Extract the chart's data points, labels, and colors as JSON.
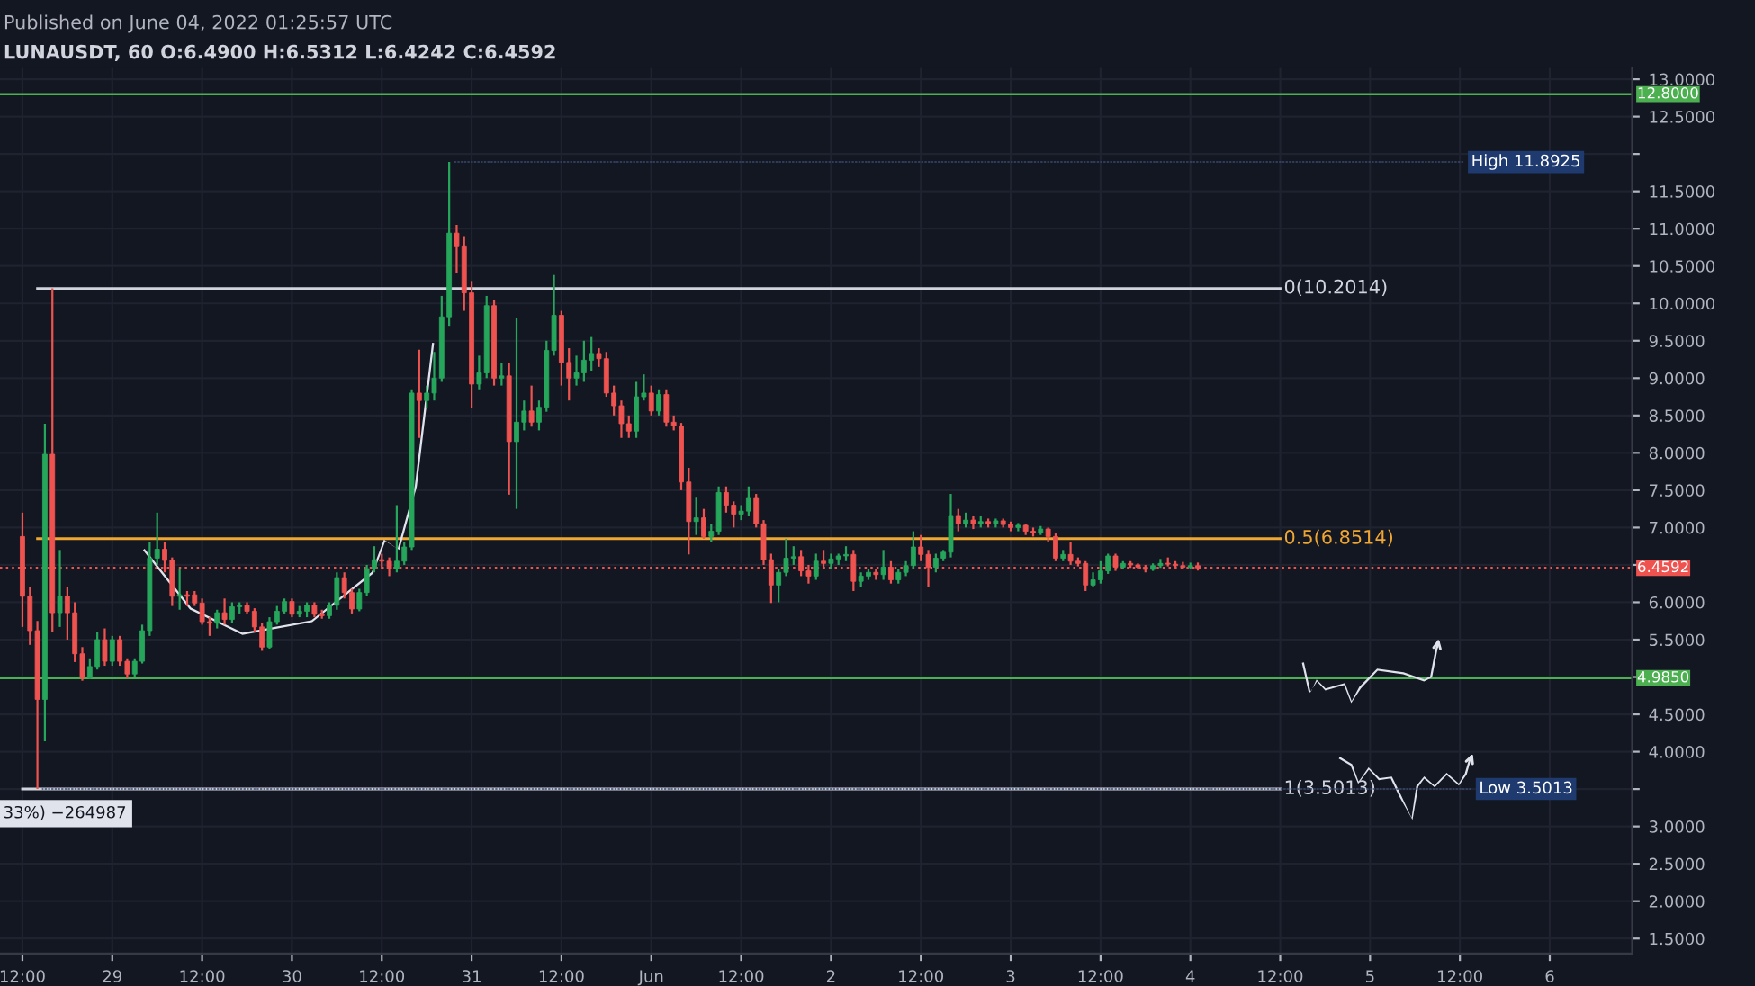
{
  "chart_data": {
    "type": "candlestick",
    "title": "Published on June 04, 2022 01:25:57 UTC",
    "subtitle": "LUNAUSDT, 60 O:6.4900 H:6.5312 L:6.4242 C:6.4592",
    "x": [
      "2022-05-28T12:00",
      "2022-05-28T13:00",
      "2022-05-28T14:00",
      "2022-05-28T15:00",
      "2022-05-28T16:00",
      "2022-05-28T17:00",
      "2022-05-28T18:00",
      "2022-05-28T19:00",
      "2022-05-28T20:00",
      "2022-05-28T21:00",
      "2022-05-28T22:00",
      "2022-05-28T23:00",
      "2022-05-29T00:00",
      "2022-05-29T01:00",
      "2022-05-29T02:00",
      "2022-05-29T03:00",
      "2022-05-29T04:00",
      "2022-05-29T05:00",
      "2022-05-29T06:00",
      "2022-05-29T07:00",
      "2022-05-29T08:00",
      "2022-05-29T09:00",
      "2022-05-29T10:00",
      "2022-05-29T11:00",
      "2022-05-29T12:00",
      "2022-05-29T13:00",
      "2022-05-29T14:00",
      "2022-05-29T15:00",
      "2022-05-29T16:00",
      "2022-05-29T17:00",
      "2022-05-29T18:00",
      "2022-05-29T19:00",
      "2022-05-29T20:00",
      "2022-05-29T21:00",
      "2022-05-29T22:00",
      "2022-05-29T23:00",
      "2022-05-30T00:00",
      "2022-05-30T01:00",
      "2022-05-30T02:00",
      "2022-05-30T03:00",
      "2022-05-30T04:00",
      "2022-05-30T05:00",
      "2022-05-30T06:00",
      "2022-05-30T07:00",
      "2022-05-30T08:00",
      "2022-05-30T09:00",
      "2022-05-30T10:00",
      "2022-05-30T11:00",
      "2022-05-30T12:00",
      "2022-05-30T13:00",
      "2022-05-30T14:00",
      "2022-05-30T15:00",
      "2022-05-30T16:00",
      "2022-05-30T17:00",
      "2022-05-30T18:00",
      "2022-05-30T19:00",
      "2022-05-30T20:00",
      "2022-05-30T21:00",
      "2022-05-30T22:00",
      "2022-05-30T23:00",
      "2022-05-31T00:00",
      "2022-05-31T01:00",
      "2022-05-31T02:00",
      "2022-05-31T03:00",
      "2022-05-31T04:00",
      "2022-05-31T05:00",
      "2022-05-31T06:00",
      "2022-05-31T07:00",
      "2022-05-31T08:00",
      "2022-05-31T09:00",
      "2022-05-31T10:00",
      "2022-05-31T11:00",
      "2022-05-31T12:00",
      "2022-05-31T13:00",
      "2022-05-31T14:00",
      "2022-05-31T15:00",
      "2022-05-31T16:00",
      "2022-05-31T17:00",
      "2022-05-31T18:00",
      "2022-05-31T19:00",
      "2022-05-31T20:00",
      "2022-05-31T21:00",
      "2022-05-31T22:00",
      "2022-05-31T23:00",
      "2022-06-01T00:00",
      "2022-06-01T01:00",
      "2022-06-01T02:00",
      "2022-06-01T03:00",
      "2022-06-01T04:00",
      "2022-06-01T05:00",
      "2022-06-01T06:00",
      "2022-06-01T07:00",
      "2022-06-01T08:00",
      "2022-06-01T09:00",
      "2022-06-01T10:00",
      "2022-06-01T11:00",
      "2022-06-01T12:00",
      "2022-06-01T13:00",
      "2022-06-01T14:00",
      "2022-06-01T15:00",
      "2022-06-01T16:00",
      "2022-06-01T17:00",
      "2022-06-01T18:00",
      "2022-06-01T19:00",
      "2022-06-01T20:00",
      "2022-06-01T21:00",
      "2022-06-01T22:00",
      "2022-06-01T23:00",
      "2022-06-02T00:00",
      "2022-06-02T01:00",
      "2022-06-02T02:00",
      "2022-06-02T03:00",
      "2022-06-02T04:00",
      "2022-06-02T05:00",
      "2022-06-02T06:00",
      "2022-06-02T07:00",
      "2022-06-02T08:00",
      "2022-06-02T09:00",
      "2022-06-02T10:00",
      "2022-06-02T11:00",
      "2022-06-02T12:00",
      "2022-06-02T13:00",
      "2022-06-02T14:00",
      "2022-06-02T15:00",
      "2022-06-02T16:00",
      "2022-06-02T17:00",
      "2022-06-02T18:00",
      "2022-06-02T19:00",
      "2022-06-02T20:00",
      "2022-06-02T21:00",
      "2022-06-02T22:00",
      "2022-06-02T23:00",
      "2022-06-03T00:00",
      "2022-06-03T01:00",
      "2022-06-03T02:00",
      "2022-06-03T03:00",
      "2022-06-03T04:00",
      "2022-06-03T05:00",
      "2022-06-03T06:00",
      "2022-06-03T07:00",
      "2022-06-03T08:00",
      "2022-06-03T09:00",
      "2022-06-03T10:00",
      "2022-06-03T11:00",
      "2022-06-03T12:00",
      "2022-06-03T13:00",
      "2022-06-03T14:00",
      "2022-06-03T15:00",
      "2022-06-03T16:00",
      "2022-06-03T17:00",
      "2022-06-03T18:00",
      "2022-06-03T19:00",
      "2022-06-03T20:00",
      "2022-06-03T21:00",
      "2022-06-03T22:00",
      "2022-06-03T23:00",
      "2022-06-04T00:00",
      "2022-06-04T01:00"
    ],
    "ohlc": [
      [
        6.88,
        7.2,
        5.67,
        6.08
      ],
      [
        6.08,
        6.2,
        5.43,
        5.62
      ],
      [
        5.62,
        5.75,
        3.5013,
        4.7
      ],
      [
        4.7,
        8.39,
        4.14,
        7.98
      ],
      [
        7.98,
        10.2014,
        5.6,
        5.86
      ],
      [
        5.86,
        6.7,
        5.67,
        6.08
      ],
      [
        6.08,
        6.2,
        5.5,
        5.86
      ],
      [
        5.86,
        6.0,
        5.2,
        5.31
      ],
      [
        5.31,
        5.4,
        4.95,
        4.99
      ],
      [
        4.99,
        5.25,
        4.97,
        5.14
      ],
      [
        5.14,
        5.6,
        5.1,
        5.5
      ],
      [
        5.5,
        5.65,
        5.15,
        5.21
      ],
      [
        5.21,
        5.55,
        5.15,
        5.5
      ],
      [
        5.5,
        5.55,
        5.15,
        5.21
      ],
      [
        5.21,
        5.25,
        4.98,
        5.04
      ],
      [
        5.04,
        5.25,
        5.0,
        5.21
      ],
      [
        5.21,
        5.7,
        5.18,
        5.62
      ],
      [
        5.62,
        6.8,
        5.55,
        6.59
      ],
      [
        6.59,
        7.2,
        6.5,
        6.71
      ],
      [
        6.71,
        6.8,
        6.4,
        6.56
      ],
      [
        6.56,
        6.6,
        5.95,
        6.08
      ],
      [
        6.08,
        6.45,
        5.9,
        6.1
      ],
      [
        6.1,
        6.15,
        5.95,
        6.08
      ],
      [
        6.1,
        6.15,
        5.95,
        5.99
      ],
      [
        5.99,
        6.05,
        5.7,
        5.74
      ],
      [
        5.74,
        5.8,
        5.55,
        5.72
      ],
      [
        5.72,
        5.9,
        5.65,
        5.86
      ],
      [
        5.86,
        6.05,
        5.7,
        5.77
      ],
      [
        5.77,
        6.0,
        5.72,
        5.94
      ],
      [
        5.94,
        6.0,
        5.85,
        5.96
      ],
      [
        5.96,
        6.0,
        5.85,
        5.88
      ],
      [
        5.88,
        5.92,
        5.6,
        5.67
      ],
      [
        5.67,
        5.72,
        5.35,
        5.4
      ],
      [
        5.4,
        5.8,
        5.38,
        5.74
      ],
      [
        5.74,
        5.95,
        5.7,
        5.88
      ],
      [
        5.88,
        6.05,
        5.85,
        6.01
      ],
      [
        6.01,
        6.05,
        5.8,
        5.84
      ],
      [
        5.84,
        5.95,
        5.8,
        5.88
      ],
      [
        5.88,
        6.0,
        5.8,
        5.96
      ],
      [
        5.96,
        6.0,
        5.8,
        5.84
      ],
      [
        5.84,
        5.9,
        5.78,
        5.82
      ],
      [
        5.82,
        6.0,
        5.78,
        5.96
      ],
      [
        5.96,
        6.4,
        5.9,
        6.33
      ],
      [
        6.33,
        6.4,
        6.05,
        6.13
      ],
      [
        6.13,
        6.18,
        5.85,
        5.91
      ],
      [
        5.91,
        6.18,
        5.88,
        6.13
      ],
      [
        6.13,
        6.5,
        6.08,
        6.45
      ],
      [
        6.45,
        6.75,
        6.4,
        6.57
      ],
      [
        6.57,
        6.65,
        6.45,
        6.55
      ],
      [
        6.55,
        6.6,
        6.35,
        6.45
      ],
      [
        6.45,
        7.3,
        6.4,
        6.55
      ],
      [
        6.55,
        6.8,
        6.5,
        6.74
      ],
      [
        6.74,
        8.85,
        6.7,
        8.8
      ],
      [
        8.8,
        9.38,
        8.2,
        8.7
      ],
      [
        8.7,
        8.9,
        8.6,
        8.8
      ],
      [
        8.8,
        9.35,
        8.7,
        9.0
      ],
      [
        9.0,
        10.1,
        8.95,
        9.82
      ],
      [
        9.82,
        11.8925,
        9.7,
        10.94
      ],
      [
        10.94,
        11.05,
        10.4,
        10.77
      ],
      [
        10.77,
        10.9,
        9.9,
        10.14
      ],
      [
        10.14,
        10.3,
        8.6,
        8.92
      ],
      [
        8.92,
        9.3,
        8.85,
        9.07
      ],
      [
        9.07,
        10.1,
        9.0,
        9.97
      ],
      [
        9.97,
        10.05,
        8.9,
        9.0
      ],
      [
        9.0,
        9.2,
        8.9,
        9.03
      ],
      [
        9.03,
        9.2,
        7.44,
        8.15
      ],
      [
        8.15,
        9.8,
        7.25,
        8.41
      ],
      [
        8.41,
        8.7,
        8.3,
        8.56
      ],
      [
        8.56,
        8.9,
        8.35,
        8.41
      ],
      [
        8.41,
        8.7,
        8.3,
        8.61
      ],
      [
        8.61,
        9.5,
        8.55,
        9.37
      ],
      [
        9.37,
        10.38,
        9.3,
        9.84
      ],
      [
        9.84,
        9.9,
        8.9,
        9.21
      ],
      [
        9.21,
        9.4,
        8.7,
        9.0
      ],
      [
        9.0,
        9.3,
        8.9,
        9.07
      ],
      [
        9.07,
        9.5,
        8.95,
        9.24
      ],
      [
        9.24,
        9.55,
        9.1,
        9.33
      ],
      [
        9.33,
        9.4,
        9.15,
        9.26
      ],
      [
        9.26,
        9.35,
        8.75,
        8.8
      ],
      [
        8.8,
        8.9,
        8.5,
        8.63
      ],
      [
        8.63,
        8.7,
        8.2,
        8.39
      ],
      [
        8.39,
        8.5,
        8.2,
        8.29
      ],
      [
        8.29,
        8.95,
        8.2,
        8.75
      ],
      [
        8.75,
        9.05,
        8.7,
        8.8
      ],
      [
        8.8,
        8.9,
        8.5,
        8.56
      ],
      [
        8.56,
        8.85,
        8.5,
        8.78
      ],
      [
        8.78,
        8.85,
        8.35,
        8.41
      ],
      [
        8.41,
        8.5,
        8.3,
        8.36
      ],
      [
        8.36,
        8.4,
        7.5,
        7.61
      ],
      [
        7.61,
        7.8,
        6.64,
        7.08
      ],
      [
        7.08,
        7.4,
        6.9,
        7.13
      ],
      [
        7.13,
        7.25,
        6.85,
        6.88
      ],
      [
        6.88,
        7.05,
        6.8,
        6.95
      ],
      [
        6.95,
        7.55,
        6.9,
        7.47
      ],
      [
        7.47,
        7.55,
        7.2,
        7.3
      ],
      [
        7.3,
        7.35,
        7.0,
        7.18
      ],
      [
        7.18,
        7.3,
        7.1,
        7.22
      ],
      [
        7.22,
        7.55,
        7.15,
        7.39
      ],
      [
        7.39,
        7.45,
        7.0,
        7.05
      ],
      [
        7.05,
        7.1,
        6.5,
        6.57
      ],
      [
        6.57,
        6.65,
        5.99,
        6.23
      ],
      [
        6.23,
        6.45,
        6.0,
        6.4
      ],
      [
        6.4,
        6.85,
        6.35,
        6.59
      ],
      [
        6.59,
        6.75,
        6.5,
        6.61
      ],
      [
        6.61,
        6.7,
        6.35,
        6.42
      ],
      [
        6.42,
        6.5,
        6.25,
        6.35
      ],
      [
        6.35,
        6.65,
        6.3,
        6.55
      ],
      [
        6.55,
        6.7,
        6.45,
        6.52
      ],
      [
        6.52,
        6.65,
        6.45,
        6.58
      ],
      [
        6.58,
        6.65,
        6.5,
        6.62
      ],
      [
        6.62,
        6.75,
        6.55,
        6.64
      ],
      [
        6.64,
        6.7,
        6.15,
        6.28
      ],
      [
        6.28,
        6.4,
        6.2,
        6.35
      ],
      [
        6.35,
        6.45,
        6.3,
        6.4
      ],
      [
        6.4,
        6.45,
        6.3,
        6.37
      ],
      [
        6.37,
        6.7,
        6.3,
        6.47
      ],
      [
        6.47,
        6.55,
        6.25,
        6.3
      ],
      [
        6.3,
        6.45,
        6.25,
        6.4
      ],
      [
        6.4,
        6.55,
        6.35,
        6.49
      ],
      [
        6.49,
        6.95,
        6.45,
        6.74
      ],
      [
        6.74,
        6.9,
        6.55,
        6.64
      ],
      [
        6.64,
        6.7,
        6.2,
        6.47
      ],
      [
        6.47,
        6.65,
        6.4,
        6.59
      ],
      [
        6.59,
        6.7,
        6.55,
        6.67
      ],
      [
        6.67,
        7.45,
        6.6,
        7.15
      ],
      [
        7.15,
        7.25,
        6.95,
        7.05
      ],
      [
        7.05,
        7.2,
        7.0,
        7.1
      ],
      [
        7.1,
        7.15,
        6.98,
        7.05
      ],
      [
        7.05,
        7.15,
        7.0,
        7.08
      ],
      [
        7.08,
        7.12,
        7.0,
        7.05
      ],
      [
        7.05,
        7.12,
        7.0,
        7.09
      ],
      [
        7.09,
        7.12,
        7.0,
        7.04
      ],
      [
        7.04,
        7.08,
        6.95,
        7.0
      ],
      [
        7.0,
        7.06,
        6.95,
        7.03
      ],
      [
        7.03,
        7.05,
        6.9,
        6.95
      ],
      [
        6.95,
        7.0,
        6.88,
        6.93
      ],
      [
        6.93,
        7.02,
        6.9,
        6.98
      ],
      [
        6.98,
        7.0,
        6.8,
        6.88
      ],
      [
        6.88,
        6.92,
        6.55,
        6.59
      ],
      [
        6.59,
        6.7,
        6.55,
        6.64
      ],
      [
        6.64,
        6.8,
        6.5,
        6.55
      ],
      [
        6.55,
        6.6,
        6.48,
        6.52
      ],
      [
        6.52,
        6.55,
        6.15,
        6.23
      ],
      [
        6.23,
        6.4,
        6.2,
        6.3
      ],
      [
        6.3,
        6.55,
        6.25,
        6.42
      ],
      [
        6.42,
        6.65,
        6.38,
        6.62
      ],
      [
        6.62,
        6.65,
        6.42,
        6.47
      ],
      [
        6.47,
        6.55,
        6.45,
        6.52
      ],
      [
        6.52,
        6.55,
        6.46,
        6.5
      ],
      [
        6.5,
        6.52,
        6.44,
        6.47
      ],
      [
        6.47,
        6.5,
        6.4,
        6.44
      ],
      [
        6.44,
        6.52,
        6.42,
        6.49
      ],
      [
        6.49,
        6.58,
        6.46,
        6.52
      ],
      [
        6.52,
        6.6,
        6.48,
        6.51
      ],
      [
        6.51,
        6.55,
        6.47,
        6.49
      ],
      [
        6.49,
        6.54,
        6.45,
        6.47
      ],
      [
        6.47,
        6.53,
        6.44,
        6.49
      ],
      [
        6.49,
        6.5312,
        6.4242,
        6.4592
      ]
    ],
    "series": [
      {
        "type": "line",
        "name": "0(10.2014)",
        "color": "#d1d4dc",
        "x": [
          "2022-05-28T14:00",
          "2022-06-04T12:00"
        ],
        "values": [
          10.2014,
          10.2014
        ]
      },
      {
        "type": "line",
        "name": "0.5(6.8514)",
        "color": "#f0a732",
        "x": [
          "2022-05-28T14:00",
          "2022-06-04T12:00"
        ],
        "values": [
          6.8514,
          6.8514
        ]
      },
      {
        "type": "line",
        "name": "1(3.5013)",
        "color": "#d1d4dc",
        "x": [
          "2022-05-28T12:00",
          "2022-06-04T12:00"
        ],
        "values": [
          3.5013,
          3.5013
        ]
      }
    ],
    "ref_lines": [
      {
        "axis": "y",
        "value": 12.8,
        "label": "12.8000",
        "color": "#4caf50",
        "line_style": "solid"
      },
      {
        "axis": "y",
        "value": 4.985,
        "label": "4.9850",
        "color": "#4caf50",
        "line_style": "solid"
      },
      {
        "axis": "y",
        "value": 6.4592,
        "label": "6.4592",
        "color": "#ef5350",
        "line_style": "dotted"
      }
    ],
    "annotations": [
      {
        "text": "High 11.8925",
        "x": "2022-05-30T21:00",
        "y": 11.8925
      },
      {
        "text": "Low 3.5013",
        "x": "2022-05-28T14:00",
        "y": 3.5013
      },
      "33%) −264987"
    ],
    "xlim": [
      "2022-05-28T09:00",
      "2022-06-06T11:00"
    ],
    "xticks": [
      {
        "value": "2022-05-28T12:00",
        "label": "12:00"
      },
      {
        "value": "2022-05-29T00:00",
        "label": "29"
      },
      {
        "value": "2022-05-29T12:00",
        "label": "12:00"
      },
      {
        "value": "2022-05-30T00:00",
        "label": "30"
      },
      {
        "value": "2022-05-30T12:00",
        "label": "12:00"
      },
      {
        "value": "2022-05-31T00:00",
        "label": "31"
      },
      {
        "value": "2022-05-31T12:00",
        "label": "12:00"
      },
      {
        "value": "2022-06-01T00:00",
        "label": "Jun"
      },
      {
        "value": "2022-06-01T12:00",
        "label": "12:00"
      },
      {
        "value": "2022-06-02T00:00",
        "label": "2"
      },
      {
        "value": "2022-06-02T12:00",
        "label": "12:00"
      },
      {
        "value": "2022-06-03T00:00",
        "label": "3"
      },
      {
        "value": "2022-06-03T12:00",
        "label": "12:00"
      },
      {
        "value": "2022-06-04T00:00",
        "label": "4"
      },
      {
        "value": "2022-06-04T12:00",
        "label": "12:00"
      },
      {
        "value": "2022-06-05T00:00",
        "label": "5"
      },
      {
        "value": "2022-06-05T12:00",
        "label": "12:00"
      },
      {
        "value": "2022-06-06T00:00",
        "label": "6"
      }
    ],
    "ylim": [
      1.3,
      13.15
    ],
    "yticks": [
      {
        "value": 1.5,
        "label": "1.5000"
      },
      {
        "value": 2.0,
        "label": "2.0000"
      },
      {
        "value": 2.5,
        "label": "2.5000"
      },
      {
        "value": 3.0,
        "label": "3.0000"
      },
      {
        "value": 3.5,
        "label": null
      },
      {
        "value": 4.0,
        "label": "4.0000"
      },
      {
        "value": 4.5,
        "label": "4.5000"
      },
      {
        "value": 5.0,
        "label": null
      },
      {
        "value": 5.5,
        "label": "5.5000"
      },
      {
        "value": 6.0,
        "label": "6.0000"
      },
      {
        "value": 6.5,
        "label": null
      },
      {
        "value": 7.0,
        "label": "7.0000"
      },
      {
        "value": 7.5,
        "label": "7.5000"
      },
      {
        "value": 8.0,
        "label": "8.0000"
      },
      {
        "value": 8.5,
        "label": "8.5000"
      },
      {
        "value": 9.0,
        "label": "9.0000"
      },
      {
        "value": 9.5,
        "label": "9.5000"
      },
      {
        "value": 10.0,
        "label": "10.0000"
      },
      {
        "value": 10.5,
        "label": "10.5000"
      },
      {
        "value": 11.0,
        "label": "11.0000"
      },
      {
        "value": 11.5,
        "label": "11.5000"
      },
      {
        "value": 12.0,
        "label": null
      },
      {
        "value": 12.5,
        "label": "12.5000"
      },
      {
        "value": 13.0,
        "label": "13.0000"
      }
    ],
    "grid": true
  }
}
